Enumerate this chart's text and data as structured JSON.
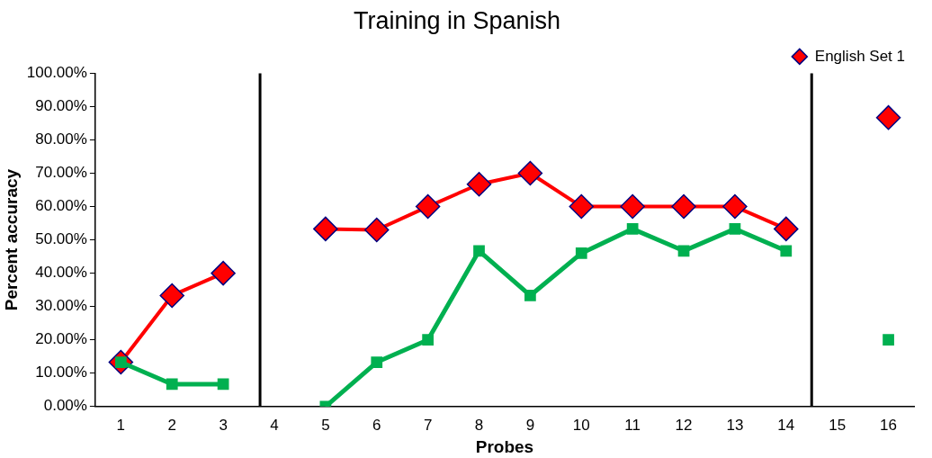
{
  "chart_data": {
    "type": "line",
    "title": "Training in Spanish",
    "xlabel": "Probes",
    "ylabel": "Percent accuracy",
    "x": [
      1,
      2,
      3,
      4,
      5,
      6,
      7,
      8,
      9,
      10,
      11,
      12,
      13,
      14,
      15,
      16
    ],
    "xlim": [
      0.5,
      16.5
    ],
    "xticks": [
      1,
      2,
      3,
      4,
      5,
      6,
      7,
      8,
      9,
      10,
      11,
      12,
      13,
      14,
      15,
      16
    ],
    "ylim": [
      0,
      100
    ],
    "yticks": [
      {
        "value": 0,
        "label": "0.00%"
      },
      {
        "value": 10,
        "label": "10.00%"
      },
      {
        "value": 20,
        "label": "20.00%"
      },
      {
        "value": 30,
        "label": "30.00%"
      },
      {
        "value": 40,
        "label": "40.00%"
      },
      {
        "value": 50,
        "label": "50.00%"
      },
      {
        "value": 60,
        "label": "60.00%"
      },
      {
        "value": 70,
        "label": "70.00%"
      },
      {
        "value": 80,
        "label": "80.00%"
      },
      {
        "value": 90,
        "label": "90.00%"
      },
      {
        "value": 100,
        "label": "100.00%"
      }
    ],
    "series": [
      {
        "name": "English Set 1",
        "color": "#ff0000",
        "marker": "diamond",
        "values": [
          13.3,
          33.3,
          40,
          null,
          53.3,
          53,
          60,
          66.7,
          70,
          60,
          60,
          60,
          60,
          53.3,
          null,
          86.7
        ]
      },
      {
        "color": "#00b050",
        "marker": "square",
        "values": [
          13.3,
          6.7,
          6.7,
          null,
          0,
          13.3,
          20,
          46.7,
          33.3,
          46,
          53.3,
          46.7,
          53.3,
          46.7,
          null,
          20
        ]
      }
    ],
    "ref_lines": [
      {
        "axis": "x",
        "value": 3.72,
        "color": "#000000"
      },
      {
        "axis": "x",
        "value": 14.5,
        "color": "#000000"
      }
    ],
    "grid": false,
    "legend": "top right"
  }
}
